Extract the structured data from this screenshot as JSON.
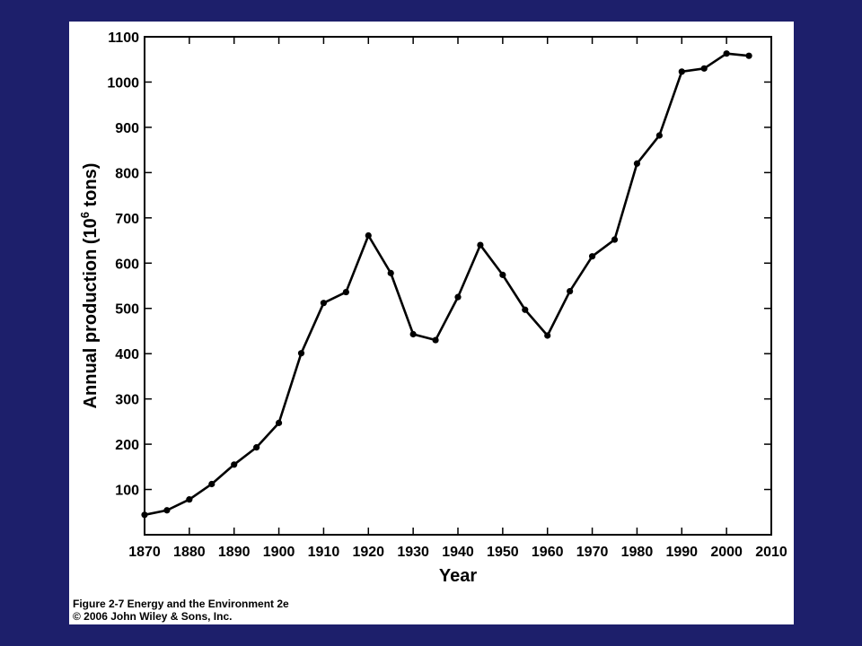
{
  "colors": {
    "background": "#1d1f6b",
    "panel": "#ffffff",
    "line": "#000000"
  },
  "caption": {
    "line1": "Figure 2-7  Energy and the Environment 2e",
    "line2": "© 2006 John Wiley & Sons, Inc."
  },
  "chart_data": {
    "type": "line",
    "xlabel": "Year",
    "ylabel_main": "Annual production (10",
    "ylabel_sup": "6",
    "ylabel_tail": " tons)",
    "xlim": [
      1870,
      2010
    ],
    "ylim": [
      0,
      1100
    ],
    "xticks": [
      1870,
      1880,
      1890,
      1900,
      1910,
      1920,
      1930,
      1940,
      1950,
      1960,
      1970,
      1980,
      1990,
      2000,
      2010
    ],
    "yticks": [
      100,
      200,
      300,
      400,
      500,
      600,
      700,
      800,
      900,
      1000,
      1100
    ],
    "grid": false,
    "series": [
      {
        "x": [
          1870,
          1875,
          1880,
          1885,
          1890,
          1895,
          1900,
          1905,
          1910,
          1915,
          1920,
          1925,
          1930,
          1935,
          1940,
          1945,
          1950,
          1955,
          1960,
          1965,
          1970,
          1975,
          1980,
          1985,
          1990,
          1995,
          2000,
          2005
        ],
        "values": [
          44,
          54,
          78,
          112,
          155,
          193,
          247,
          401,
          512,
          536,
          661,
          578,
          443,
          430,
          525,
          640,
          574,
          497,
          440,
          538,
          615,
          652,
          820,
          882,
          1023,
          1030,
          1063,
          1058
        ]
      }
    ]
  }
}
